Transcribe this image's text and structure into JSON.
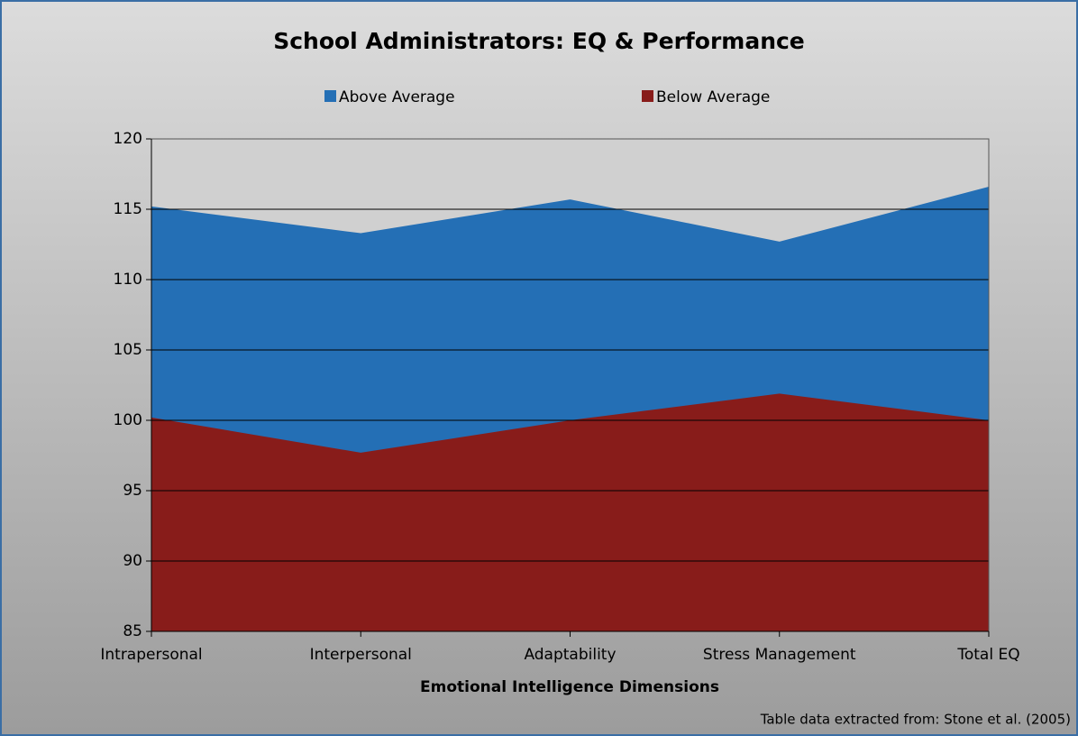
{
  "chart_data": {
    "type": "area",
    "title": "School Administrators: EQ & Performance",
    "x_label": "Emotional Intelligence Dimensions",
    "note": "Table data extracted from: Stone et al. (2005)",
    "categories": [
      "Intrapersonal",
      "Interpersonal",
      "Adaptability",
      "Stress Management",
      "Total EQ"
    ],
    "series": [
      {
        "name": "Above Average",
        "color": "#246fb5",
        "values": [
          115.2,
          113.3,
          115.7,
          112.7,
          116.6
        ]
      },
      {
        "name": "Below Average",
        "color": "#881c1a",
        "values": [
          100.2,
          97.7,
          100.0,
          101.9,
          100.0
        ]
      }
    ],
    "ylim": [
      85,
      120
    ],
    "yticks": [
      85,
      90,
      95,
      100,
      105,
      110,
      115,
      120
    ],
    "grid": true,
    "legend": "top"
  }
}
